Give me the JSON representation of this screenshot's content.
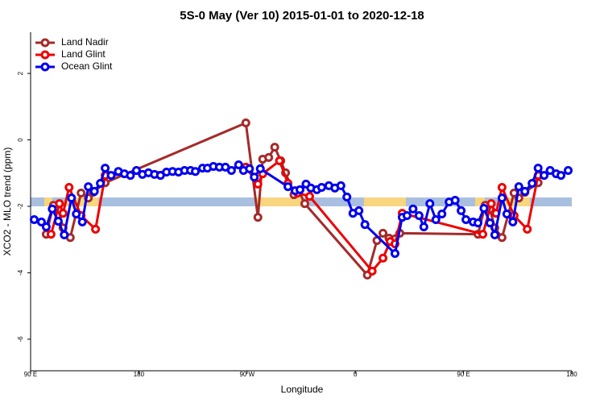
{
  "chart_data": {
    "type": "line",
    "title": "5S-0 May (Ver 10)   2015-01-01 to 2020-12-18",
    "xlabel": "Longitude",
    "ylabel": "XCO2 - MLO trend (ppm)",
    "xlim": [
      90,
      540
    ],
    "ylim": [
      -6.95,
      3.24
    ],
    "xticks": [
      {
        "value": 90,
        "label": "90 E"
      },
      180,
      {
        "value": 270,
        "label": "90 W"
      },
      {
        "value": 360,
        "label": "0"
      },
      {
        "value": 450,
        "label": "90 E"
      },
      {
        "value": 540,
        "label": "180"
      }
    ],
    "yticks": [
      2,
      0,
      -2,
      -4,
      -6
    ],
    "legend": "top-left",
    "series": [
      {
        "name": "Land Nadir",
        "color": "#a52a2a",
        "x": [
          103,
          109,
          113,
          117,
          123,
          132,
          138,
          142,
          152,
          269,
          279,
          283,
          288,
          293,
          298,
          302,
          309,
          313,
          318,
          370,
          378,
          383,
          388,
          397,
          462,
          468,
          472,
          476,
          482,
          492,
          496,
          501,
          512
        ],
        "values": [
          -2.84,
          -1.97,
          -2.09,
          -2.65,
          -2.94,
          -1.6,
          -1.75,
          -1.58,
          -1.29,
          0.51,
          -2.33,
          -0.58,
          -0.53,
          -0.22,
          -0.63,
          -0.99,
          -1.65,
          -1.53,
          -1.92,
          -4.07,
          -3.03,
          -2.81,
          -2.96,
          -2.81,
          -2.84,
          -1.97,
          -2.09,
          -2.65,
          -2.94,
          -1.6,
          -1.75,
          -1.58,
          -1.29
        ]
      },
      {
        "name": "Land Glint",
        "color": "#ee0000",
        "x": [
          107,
          114,
          117,
          122,
          132,
          144,
          152,
          269,
          279,
          283,
          297,
          304,
          312,
          322,
          374,
          383,
          389,
          393,
          399,
          466,
          473,
          477,
          482,
          492,
          503,
          512
        ],
        "values": [
          -2.84,
          -1.92,
          -2.21,
          -1.43,
          -2.28,
          -2.69,
          -1.07,
          -0.82,
          -1.33,
          -1.02,
          -0.63,
          -1.31,
          -1.6,
          -1.7,
          -3.95,
          -3.56,
          -3.06,
          -3.13,
          -2.21,
          -2.84,
          -1.92,
          -2.21,
          -1.43,
          -2.28,
          -2.69,
          -1.07
        ]
      },
      {
        "name": "Ocean Glint",
        "color": "#0000ee",
        "x": [
          93,
          99,
          103,
          108,
          113,
          118,
          124,
          128,
          133,
          138,
          143,
          148,
          152,
          157,
          163,
          168,
          173,
          178,
          183,
          188,
          193,
          198,
          203,
          208,
          213,
          218,
          223,
          227,
          233,
          237,
          242,
          247,
          252,
          257,
          263,
          267,
          272,
          276,
          281,
          304,
          310,
          314,
          319,
          323,
          328,
          332,
          338,
          343,
          348,
          353,
          358,
          363,
          368,
          393,
          399,
          403,
          408,
          413,
          417,
          422,
          427,
          432,
          438,
          443,
          448,
          452,
          458,
          462,
          467,
          472,
          476,
          482,
          486,
          491,
          496,
          501,
          507,
          512,
          517,
          522,
          527,
          531,
          537
        ],
        "values": [
          -2.4,
          -2.47,
          -2.62,
          -2.08,
          -2.45,
          -2.86,
          -1.75,
          -2.23,
          -2.47,
          -1.41,
          -1.55,
          -1.31,
          -0.85,
          -1.07,
          -0.95,
          -1.02,
          -1.07,
          -0.92,
          -1.04,
          -0.99,
          -1.04,
          -1.07,
          -0.97,
          -0.95,
          -0.97,
          -0.92,
          -0.92,
          -0.95,
          -0.85,
          -0.85,
          -0.8,
          -0.82,
          -0.82,
          -0.92,
          -0.75,
          -0.92,
          -0.87,
          -1.12,
          -0.87,
          -1.41,
          -1.53,
          -1.5,
          -1.33,
          -1.45,
          -1.5,
          -1.43,
          -1.38,
          -1.45,
          -1.38,
          -1.72,
          -2.21,
          -2.13,
          -2.55,
          -3.42,
          -2.33,
          -2.28,
          -2.08,
          -2.28,
          -2.62,
          -1.92,
          -2.4,
          -2.23,
          -1.87,
          -1.82,
          -2.13,
          -2.4,
          -2.47,
          -2.5,
          -2.06,
          -2.5,
          -2.86,
          -1.75,
          -2.23,
          -2.47,
          -1.41,
          -1.55,
          -1.31,
          -0.85,
          -1.07,
          -0.92,
          -1.02,
          -1.07,
          -0.92
        ]
      }
    ]
  }
}
